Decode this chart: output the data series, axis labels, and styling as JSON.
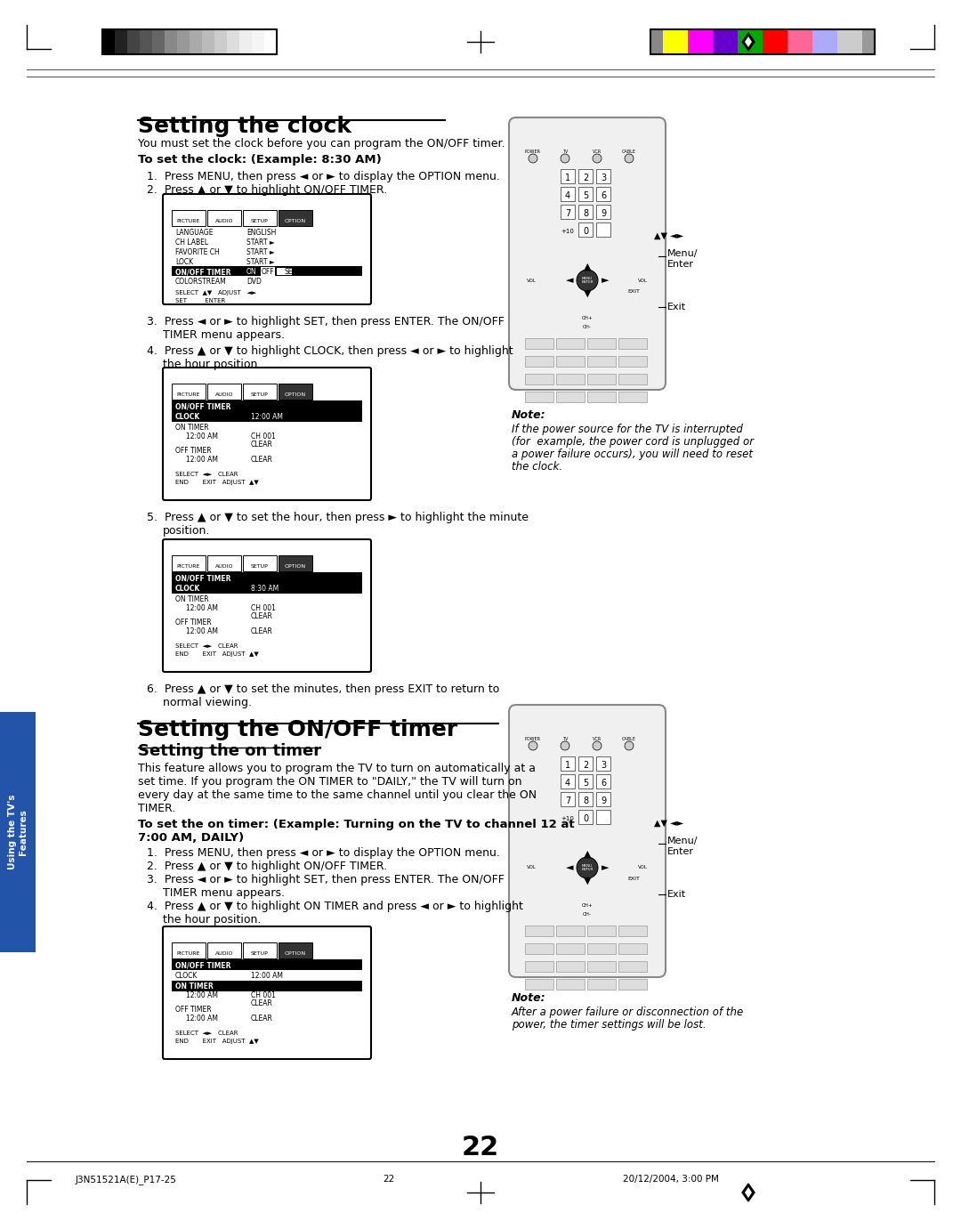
{
  "page_width": 10.8,
  "page_height": 13.81,
  "bg_color": "#ffffff",
  "title1": "Setting the clock",
  "title2": "Setting the ON/OFF timer",
  "subtitle_on_timer": "Setting the on timer",
  "footer_left": "J3N51521A(E)_P17-25",
  "footer_center": "22",
  "footer_right": "20/12/2004, 3:00 PM",
  "page_number": "22",
  "grayscale_colors": [
    "#000000",
    "#222222",
    "#444444",
    "#555555",
    "#666666",
    "#888888",
    "#999999",
    "#aaaaaa",
    "#bbbbbb",
    "#cccccc",
    "#dddddd",
    "#eeeeee",
    "#f5f5f5",
    "#ffffff"
  ],
  "color_bars": [
    "#ffff00",
    "#ff00ff",
    "#6600cc",
    "#00aa00",
    "#ff0000",
    "#ff6699",
    "#aaaaff",
    "#cccccc"
  ],
  "sidebar_color": "#2255aa",
  "sidebar_text": "Using the TV's\nFeatures"
}
